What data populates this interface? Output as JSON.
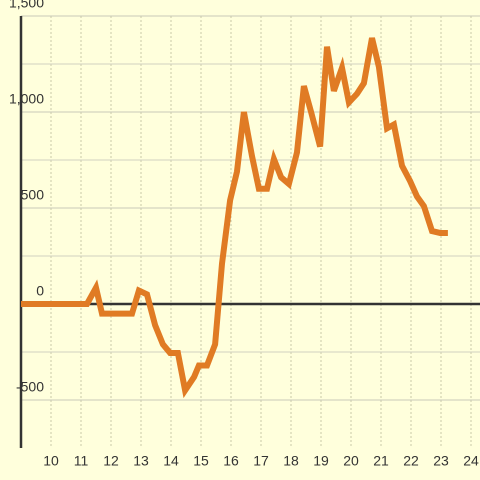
{
  "chart_data": {
    "type": "line",
    "x": [
      9,
      11.2,
      11.5,
      11.7,
      12.7,
      12.93,
      13.2,
      13.47,
      13.73,
      13.97,
      14.23,
      14.47,
      14.77,
      14.93,
      15.2,
      15.47,
      15.7,
      15.97,
      16.2,
      16.43,
      16.7,
      16.93,
      17.2,
      17.43,
      17.67,
      17.93,
      18.2,
      18.43,
      18.67,
      18.97,
      19.2,
      19.43,
      19.7,
      19.93,
      20.2,
      20.43,
      20.7,
      20.93,
      21.2,
      21.43,
      21.7,
      21.97,
      22.2,
      22.43,
      22.7,
      22.97,
      23.23
    ],
    "series": [
      {
        "color": "#e07b24",
        "values": [
          0,
          0,
          85,
          -50,
          -50,
          70,
          50,
          -110,
          -210,
          -255,
          -255,
          -450,
          -380,
          -320,
          -320,
          -210,
          210,
          540,
          690,
          1000,
          770,
          600,
          600,
          755,
          660,
          625,
          790,
          1135,
          1000,
          820,
          1340,
          1110,
          1230,
          1050,
          1095,
          1150,
          1385,
          1235,
          915,
          935,
          720,
          640,
          560,
          510,
          380,
          370,
          370
        ]
      }
    ],
    "xlim": [
      9,
      24.3
    ],
    "ylim": [
      -750,
      1500
    ],
    "xticks": [
      10,
      11,
      12,
      13,
      14,
      15,
      16,
      17,
      18,
      19,
      20,
      21,
      22,
      23,
      24
    ],
    "yticks": [
      {
        "value": 1500,
        "label": "1,500"
      },
      {
        "value": 1000,
        "label": "1,000"
      },
      500,
      0,
      -500
    ],
    "y_minor_ticks": [
      1250,
      750,
      250,
      -250
    ],
    "grid": true
  }
}
